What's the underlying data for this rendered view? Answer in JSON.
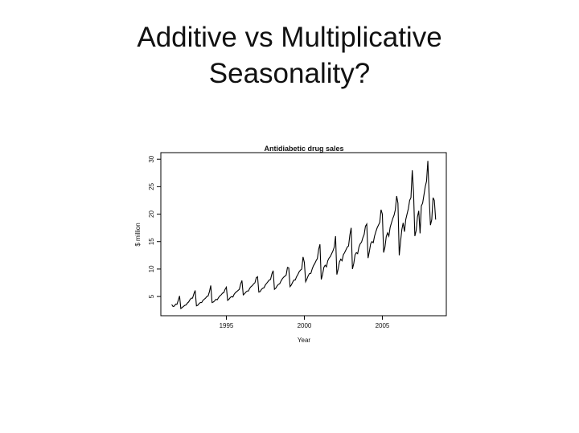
{
  "heading": [
    "Additive vs Multiplicative",
    "Seasonality?"
  ],
  "chart_data": {
    "type": "line",
    "title": "Antidiabetic drug sales",
    "xlabel": "Year",
    "ylabel": "$ million",
    "color": "#000000",
    "x": [
      1991.5,
      1991.583,
      1991.667,
      1991.75,
      1991.833,
      1991.917,
      1992,
      1992.083,
      1992.167,
      1992.25,
      1992.333,
      1992.417,
      1992.5,
      1992.583,
      1992.667,
      1992.75,
      1992.833,
      1992.917,
      1993,
      1993.083,
      1993.167,
      1993.25,
      1993.333,
      1993.417,
      1993.5,
      1993.583,
      1993.667,
      1993.75,
      1993.833,
      1993.917,
      1994,
      1994.083,
      1994.167,
      1994.25,
      1994.333,
      1994.417,
      1994.5,
      1994.583,
      1994.667,
      1994.75,
      1994.833,
      1994.917,
      1995,
      1995.083,
      1995.167,
      1995.25,
      1995.333,
      1995.417,
      1995.5,
      1995.583,
      1995.667,
      1995.75,
      1995.833,
      1995.917,
      1996,
      1996.083,
      1996.167,
      1996.25,
      1996.333,
      1996.417,
      1996.5,
      1996.583,
      1996.667,
      1996.75,
      1996.833,
      1996.917,
      1997,
      1997.083,
      1997.167,
      1997.25,
      1997.333,
      1997.417,
      1997.5,
      1997.583,
      1997.667,
      1997.75,
      1997.833,
      1997.917,
      1998,
      1998.083,
      1998.167,
      1998.25,
      1998.333,
      1998.417,
      1998.5,
      1998.583,
      1998.667,
      1998.75,
      1998.833,
      1998.917,
      1999,
      1999.083,
      1999.167,
      1999.25,
      1999.333,
      1999.417,
      1999.5,
      1999.583,
      1999.667,
      1999.75,
      1999.833,
      1999.917,
      2000,
      2000.083,
      2000.167,
      2000.25,
      2000.333,
      2000.417,
      2000.5,
      2000.583,
      2000.667,
      2000.75,
      2000.833,
      2000.917,
      2001,
      2001.083,
      2001.167,
      2001.25,
      2001.333,
      2001.417,
      2001.5,
      2001.583,
      2001.667,
      2001.75,
      2001.833,
      2001.917,
      2002,
      2002.083,
      2002.167,
      2002.25,
      2002.333,
      2002.417,
      2002.5,
      2002.583,
      2002.667,
      2002.75,
      2002.833,
      2002.917,
      2003,
      2003.083,
      2003.167,
      2003.25,
      2003.333,
      2003.417,
      2003.5,
      2003.583,
      2003.667,
      2003.75,
      2003.833,
      2003.917,
      2004,
      2004.083,
      2004.167,
      2004.25,
      2004.333,
      2004.417,
      2004.5,
      2004.583,
      2004.667,
      2004.75,
      2004.833,
      2004.917,
      2005,
      2005.083,
      2005.167,
      2005.25,
      2005.333,
      2005.417,
      2005.5,
      2005.583,
      2005.667,
      2005.75,
      2005.833,
      2005.917,
      2006,
      2006.083,
      2006.167,
      2006.25,
      2006.333,
      2006.417,
      2006.5,
      2006.583,
      2006.667,
      2006.75,
      2006.833,
      2006.917,
      2007,
      2007.083,
      2007.167,
      2007.25,
      2007.333,
      2007.417,
      2007.5,
      2007.583,
      2007.667,
      2007.75,
      2007.833,
      2007.917,
      2008,
      2008.083,
      2008.167,
      2008.25,
      2008.333,
      2008.417
    ],
    "values": [
      3.53,
      3.18,
      3.25,
      3.61,
      3.57,
      4.31,
      5.09,
      2.81,
      2.99,
      3.2,
      3.38,
      3.45,
      3.8,
      4.01,
      4.41,
      4.69,
      4.7,
      5.47,
      6.1,
      3.3,
      3.4,
      3.7,
      3.9,
      3.9,
      4.3,
      4.5,
      4.7,
      5.0,
      5.1,
      5.9,
      7.0,
      3.9,
      4.0,
      4.2,
      4.5,
      4.4,
      4.8,
      5.1,
      5.3,
      5.6,
      5.7,
      6.3,
      6.7,
      4.3,
      4.5,
      4.8,
      5.0,
      4.9,
      5.4,
      5.7,
      5.9,
      6.1,
      6.3,
      7.3,
      7.9,
      5.3,
      5.5,
      5.8,
      6.0,
      6.0,
      6.5,
      6.8,
      7.0,
      7.3,
      7.5,
      8.4,
      8.6,
      5.8,
      5.9,
      6.3,
      6.5,
      6.6,
      7.1,
      7.4,
      7.7,
      8.0,
      8.1,
      9.1,
      9.7,
      6.3,
      6.5,
      6.9,
      7.2,
      7.3,
      7.8,
      8.2,
      8.5,
      8.7,
      8.9,
      10.3,
      10.2,
      6.8,
      7.1,
      7.6,
      8.0,
      8.0,
      8.6,
      9.0,
      9.5,
      9.8,
      10.0,
      12.2,
      11.2,
      7.7,
      8.2,
      8.8,
      9.2,
      9.2,
      10.0,
      10.6,
      11.0,
      11.5,
      11.9,
      13.6,
      14.5,
      8.1,
      9.0,
      10.3,
      10.7,
      10.4,
      11.5,
      12.0,
      12.3,
      12.8,
      13.3,
      14.0,
      16.0,
      9.0,
      10.0,
      11.3,
      11.8,
      11.5,
      12.6,
      13.0,
      13.5,
      14.0,
      14.2,
      16.2,
      17.5,
      10.0,
      11.0,
      12.6,
      13.0,
      12.8,
      14.0,
      14.6,
      14.9,
      15.7,
      16.3,
      17.8,
      18.2,
      12.0,
      13.2,
      14.6,
      15.0,
      14.8,
      16.0,
      16.8,
      17.5,
      18.0,
      18.5,
      20.8,
      20.0,
      13.0,
      14.0,
      15.9,
      16.6,
      16.0,
      17.6,
      18.4,
      19.2,
      19.8,
      20.8,
      23.3,
      22.0,
      12.5,
      15.0,
      17.2,
      18.4,
      16.8,
      19.0,
      20.0,
      21.0,
      22.5,
      23.0,
      28.0,
      24.0,
      16.0,
      17.0,
      19.5,
      20.6,
      16.5,
      21.5,
      22.0,
      23.5,
      25.0,
      26.0,
      29.7,
      23.2,
      18.0,
      19.0,
      23.0,
      22.5,
      19.0
    ],
    "xlim": [
      1990.8,
      2009.1
    ],
    "xticks": [
      1995,
      2000,
      2005
    ],
    "ylim": [
      1.5,
      31.2
    ],
    "yticks": [
      5,
      10,
      15,
      20,
      25,
      30
    ]
  }
}
